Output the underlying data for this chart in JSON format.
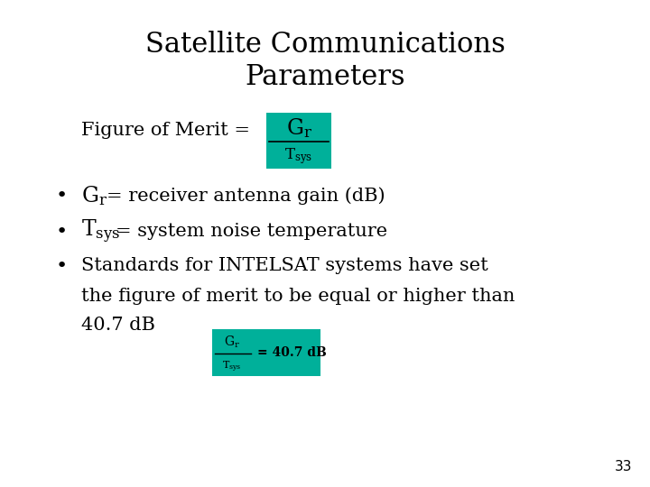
{
  "title_line1": "Satellite Communications",
  "title_line2": "Parameters",
  "title_fontsize": 22,
  "bg_color": "#ffffff",
  "teal_color": "#00b09a",
  "text_color": "#000000",
  "slide_number": "33",
  "figure_of_merit_label": "Figure of Merit = ",
  "bullet1_main": "= receiver antenna gain (dB)",
  "bullet2_main": "= system noise temperature",
  "bullet3_line1": "Standards for INTELSAT systems have set",
  "bullet3_line2": "the figure of merit to be equal or higher than",
  "bullet3_line3": "40.7 dB",
  "body_fontsize": 15,
  "small_box_eq": "= 40.7 dB"
}
